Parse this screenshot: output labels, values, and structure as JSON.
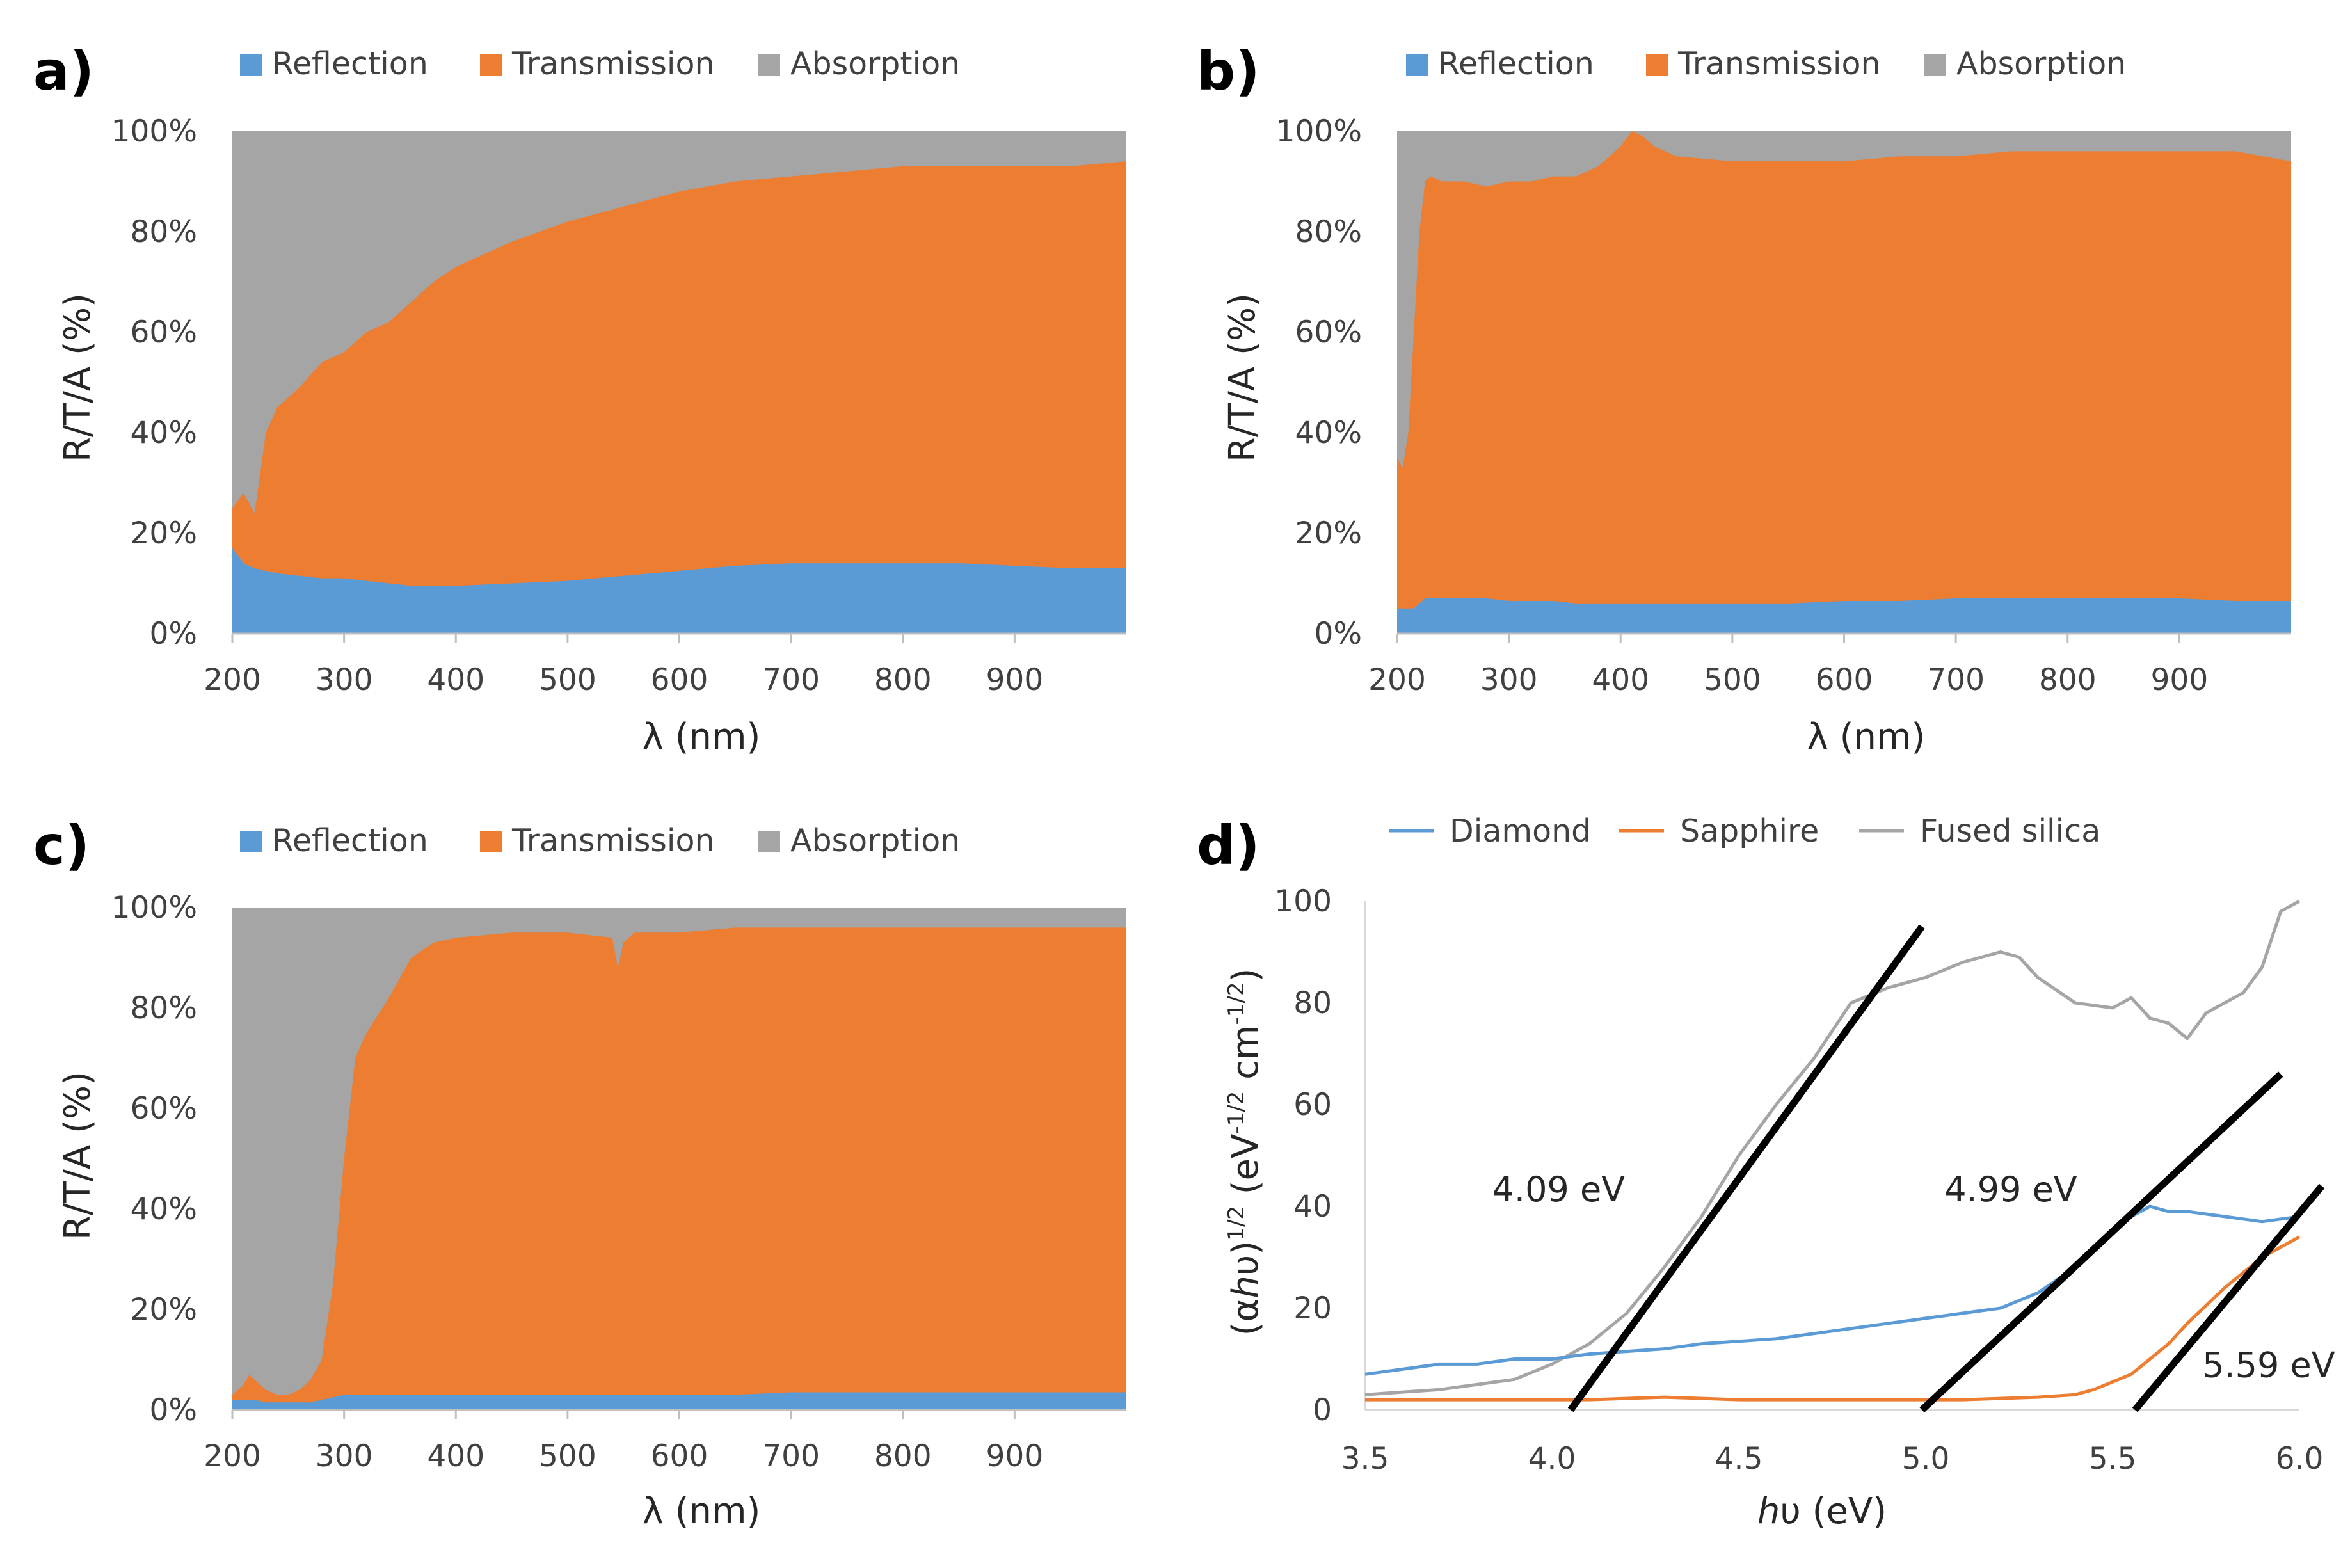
{
  "colors": {
    "reflection": "#5B9BD5",
    "transmission": "#ED7D31",
    "absorption": "#A5A5A5",
    "diamond": "#5B9BD5",
    "sapphire": "#ED7D31",
    "fused_silica": "#A5A5A5",
    "fit_line": "#000000"
  },
  "chart_data": [
    {
      "panel": "a)",
      "type": "area",
      "stacked": true,
      "series_names": [
        "Reflection",
        "Transmission",
        "Absorption"
      ],
      "xlabel": "λ (nm)",
      "ylabel": "R/T/A (%)",
      "xlim": [
        200,
        1000
      ],
      "ylim": [
        0,
        100
      ],
      "x_ticks": [
        "200",
        "300",
        "400",
        "500",
        "600",
        "700",
        "800",
        "900"
      ],
      "y_ticks": [
        "0%",
        "20%",
        "40%",
        "60%",
        "80%",
        "100%"
      ],
      "x": [
        200,
        210,
        220,
        230,
        240,
        260,
        280,
        300,
        320,
        340,
        360,
        380,
        400,
        450,
        500,
        550,
        600,
        650,
        700,
        750,
        800,
        850,
        900,
        950,
        1000
      ],
      "reflection": [
        17,
        14,
        13,
        12.5,
        12,
        11.5,
        11,
        11,
        10.5,
        10,
        9.5,
        9.5,
        9.5,
        10,
        10.5,
        11.5,
        12.5,
        13.5,
        14,
        14,
        14,
        14,
        13.5,
        13,
        13
      ],
      "transmission_top": [
        25,
        28,
        24,
        40,
        45,
        49,
        54,
        56,
        60,
        62,
        66,
        70,
        73,
        78,
        82,
        85,
        88,
        90,
        91,
        92,
        93,
        93,
        93,
        93,
        94
      ]
    },
    {
      "panel": "b)",
      "type": "area",
      "stacked": true,
      "series_names": [
        "Reflection",
        "Transmission",
        "Absorption"
      ],
      "xlabel": "λ (nm)",
      "ylabel": "R/T/A (%)",
      "xlim": [
        200,
        1000
      ],
      "ylim": [
        0,
        100
      ],
      "x_ticks": [
        "200",
        "300",
        "400",
        "500",
        "600",
        "700",
        "800",
        "900"
      ],
      "y_ticks": [
        "0%",
        "20%",
        "40%",
        "60%",
        "80%",
        "100%"
      ],
      "x": [
        200,
        205,
        210,
        215,
        220,
        225,
        230,
        240,
        260,
        280,
        300,
        320,
        340,
        360,
        380,
        400,
        410,
        420,
        430,
        450,
        500,
        550,
        600,
        650,
        700,
        750,
        800,
        850,
        900,
        950,
        1000
      ],
      "reflection": [
        5,
        5,
        5,
        5,
        6,
        7,
        7,
        7,
        7,
        7,
        6.5,
        6.5,
        6.5,
        6,
        6,
        6,
        6,
        6,
        6,
        6,
        6,
        6,
        6.5,
        6.5,
        7,
        7,
        7,
        7,
        7,
        6.5,
        6.5
      ],
      "transmission_top": [
        35,
        33,
        40,
        60,
        80,
        90,
        91,
        90,
        90,
        89,
        90,
        90,
        91,
        91,
        93,
        97,
        100,
        99,
        97,
        95,
        94,
        94,
        94,
        95,
        95,
        96,
        96,
        96,
        96,
        96,
        94
      ]
    },
    {
      "panel": "c)",
      "type": "area",
      "stacked": true,
      "series_names": [
        "Reflection",
        "Transmission",
        "Absorption"
      ],
      "xlabel": "λ (nm)",
      "ylabel": "R/T/A (%)",
      "xlim": [
        200,
        1000
      ],
      "ylim": [
        0,
        100
      ],
      "x_ticks": [
        "200",
        "300",
        "400",
        "500",
        "600",
        "700",
        "800",
        "900"
      ],
      "y_ticks": [
        "0%",
        "20%",
        "40%",
        "60%",
        "80%",
        "100%"
      ],
      "x": [
        200,
        210,
        215,
        220,
        230,
        240,
        250,
        260,
        270,
        280,
        290,
        300,
        310,
        320,
        340,
        360,
        380,
        400,
        450,
        500,
        540,
        545,
        550,
        560,
        600,
        650,
        700,
        800,
        900,
        1000
      ],
      "reflection": [
        2,
        2,
        2,
        2,
        1.5,
        1.5,
        1.5,
        1.5,
        1.5,
        2,
        2.5,
        3,
        3,
        3,
        3,
        3,
        3,
        3,
        3,
        3,
        3,
        3,
        3,
        3,
        3,
        3,
        3.5,
        3.5,
        3.5,
        3.5
      ],
      "transmission_top": [
        3,
        5,
        7,
        6,
        4,
        3,
        3,
        4,
        6,
        10,
        25,
        50,
        70,
        75,
        82,
        90,
        93,
        94,
        95,
        95,
        94,
        88,
        93,
        95,
        95,
        96,
        96,
        96,
        96,
        96
      ]
    },
    {
      "panel": "d)",
      "type": "line",
      "xlabel": "hυ (eV)",
      "ylabel": "(αhυ)^1/2 (eV^-1/2 cm^-1/2)",
      "xlim": [
        3.5,
        6.0
      ],
      "ylim": [
        0,
        100
      ],
      "x_ticks": [
        "3.5",
        "4.0",
        "4.5",
        "5.0",
        "5.5",
        "6.0"
      ],
      "y_ticks": [
        "0",
        "20",
        "40",
        "60",
        "80",
        "100"
      ],
      "series": [
        {
          "name": "Diamond",
          "x": [
            3.5,
            3.6,
            3.7,
            3.8,
            3.9,
            4.0,
            4.1,
            4.2,
            4.3,
            4.4,
            4.5,
            4.6,
            4.7,
            4.8,
            4.9,
            5.0,
            5.1,
            5.2,
            5.3,
            5.4,
            5.5,
            5.55,
            5.6,
            5.65,
            5.7,
            5.8,
            5.9,
            6.0
          ],
          "y": [
            7,
            8,
            9,
            9,
            10,
            10,
            11,
            11.5,
            12,
            13,
            13.5,
            14,
            15,
            16,
            17,
            18,
            19,
            20,
            23,
            28,
            35,
            38,
            40,
            39,
            39,
            38,
            37,
            38
          ]
        },
        {
          "name": "Sapphire",
          "x": [
            3.5,
            3.7,
            3.9,
            4.1,
            4.3,
            4.5,
            4.7,
            4.9,
            5.1,
            5.3,
            5.4,
            5.45,
            5.5,
            5.55,
            5.6,
            5.65,
            5.7,
            5.8,
            5.9,
            6.0
          ],
          "y": [
            2,
            2,
            2,
            2,
            2.5,
            2,
            2,
            2,
            2,
            2.5,
            3,
            4,
            5.5,
            7,
            10,
            13,
            17,
            24,
            30,
            34
          ]
        },
        {
          "name": "Fused silica",
          "x": [
            3.5,
            3.7,
            3.9,
            4.0,
            4.1,
            4.2,
            4.3,
            4.4,
            4.5,
            4.6,
            4.7,
            4.8,
            4.9,
            5.0,
            5.1,
            5.2,
            5.25,
            5.3,
            5.4,
            5.5,
            5.55,
            5.6,
            5.65,
            5.7,
            5.75,
            5.8,
            5.85,
            5.9,
            5.95,
            6.0
          ],
          "y": [
            3,
            4,
            6,
            9,
            13,
            19,
            28,
            38,
            50,
            60,
            69,
            80,
            83,
            85,
            88,
            90,
            89,
            85,
            80,
            79,
            81,
            77,
            76,
            73,
            78,
            80,
            82,
            87,
            98,
            100
          ]
        }
      ],
      "fit_lines": [
        {
          "label": "4.09 eV",
          "x": [
            4.05,
            4.99
          ],
          "y": [
            0,
            95
          ]
        },
        {
          "label": "4.99 eV",
          "x": [
            4.99,
            5.95
          ],
          "y": [
            0,
            66
          ]
        },
        {
          "label": "5.59 eV",
          "x": [
            5.56,
            6.06
          ],
          "y": [
            0,
            44
          ]
        }
      ]
    }
  ]
}
